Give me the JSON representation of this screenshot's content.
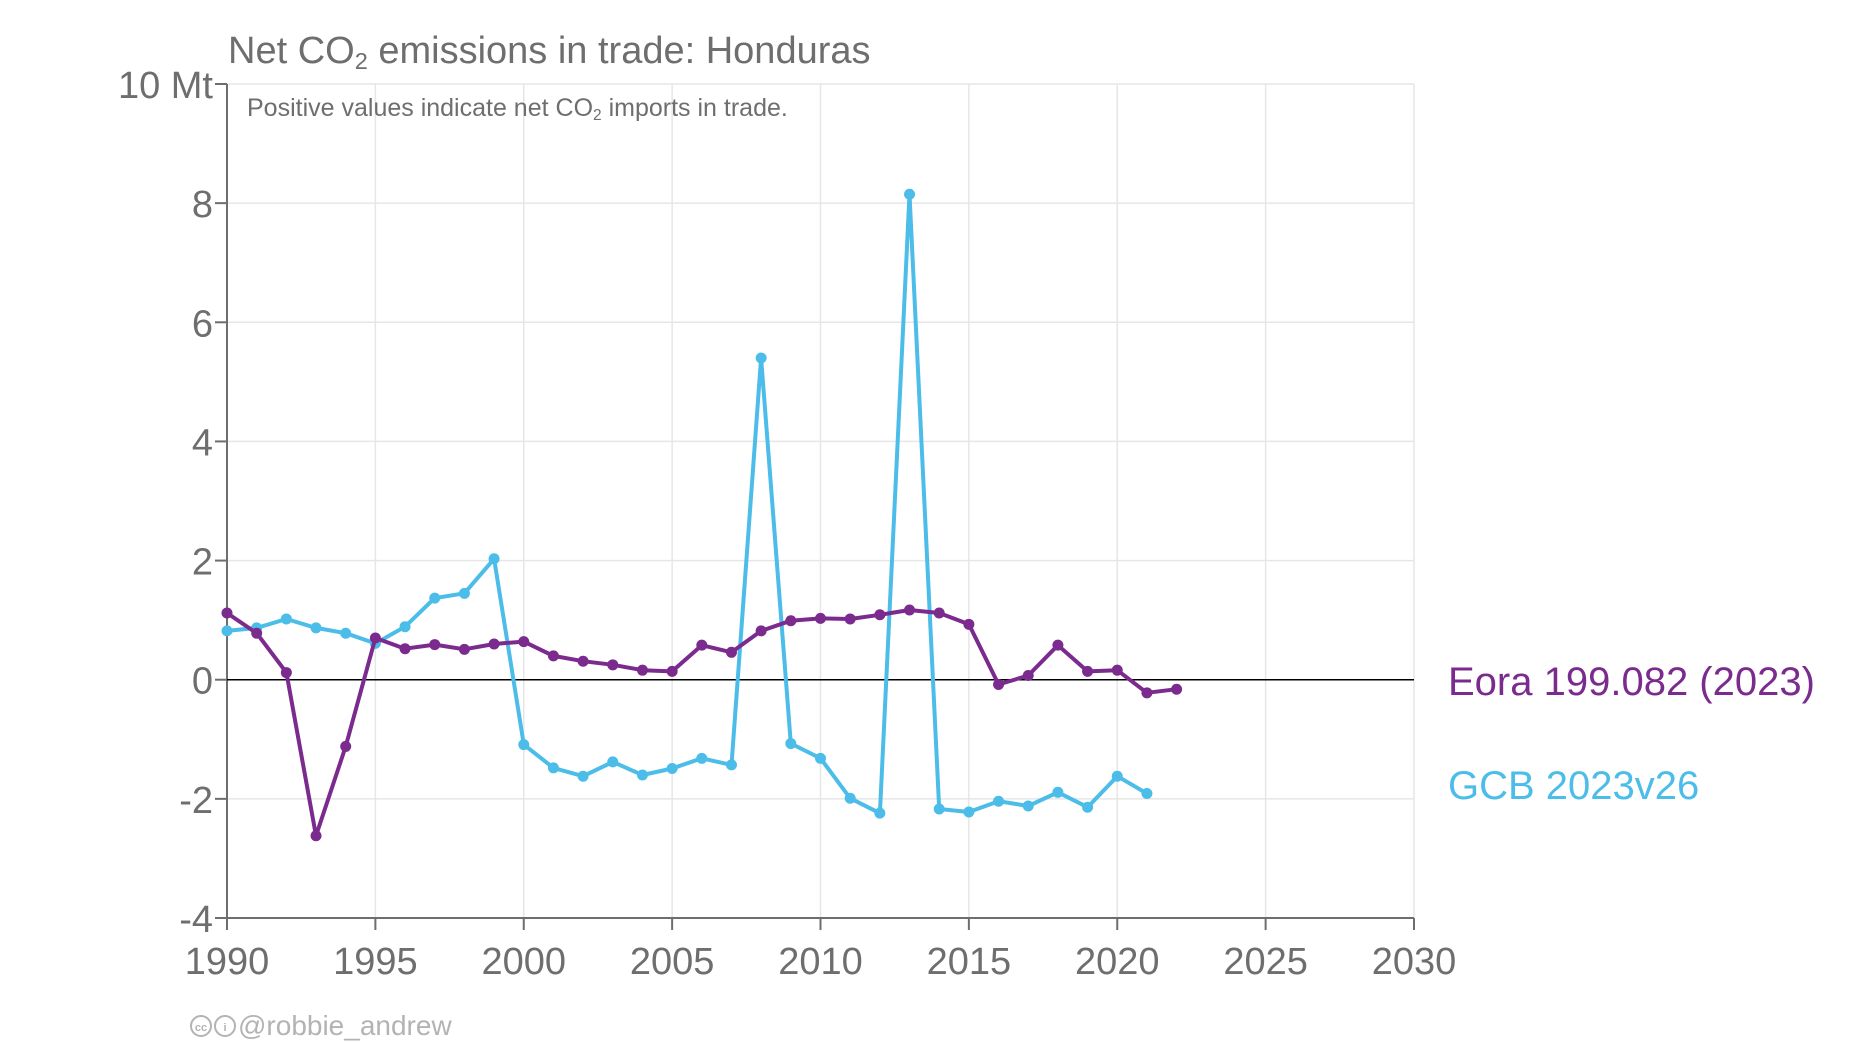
{
  "title": {
    "prefix": "Net CO",
    "sub": "2",
    "suffix": " emissions in trade: Honduras"
  },
  "subtitle": {
    "prefix": "Positive values indicate net CO",
    "sub": "2",
    "suffix": " imports in trade."
  },
  "credit": {
    "icons": [
      "cc-icon",
      "by-icon"
    ],
    "text": "@robbie_andrew"
  },
  "colors": {
    "eora": "#7b2a8e",
    "gcb": "#4bbde8",
    "axis": "#6e6e6e",
    "grid": "#e6e6e6",
    "zero": "#000000"
  },
  "chart_data": {
    "type": "line",
    "xlim": [
      1990,
      2030
    ],
    "ylim": [
      -4,
      10
    ],
    "xticks": [
      1990,
      1995,
      2000,
      2005,
      2010,
      2015,
      2020,
      2025,
      2030
    ],
    "yticks": [
      -4,
      -2,
      0,
      2,
      4,
      6,
      8,
      10
    ],
    "ytick_labels": [
      "-4",
      "-2",
      "0",
      "2",
      "4",
      "6",
      "8",
      "10 Mt"
    ],
    "grid": true,
    "legend_placement": "right",
    "series": [
      {
        "name": "Eora 199.082 (2023)",
        "color": "#7b2a8e",
        "x": [
          1990,
          1991,
          1992,
          1993,
          1994,
          1995,
          1996,
          1997,
          1998,
          1999,
          2000,
          2001,
          2002,
          2003,
          2004,
          2005,
          2006,
          2007,
          2008,
          2009,
          2010,
          2011,
          2012,
          2013,
          2014,
          2015,
          2016,
          2017,
          2018,
          2019,
          2020,
          2021,
          2022
        ],
        "y": [
          1.12,
          0.78,
          0.12,
          -2.62,
          -1.12,
          0.7,
          0.52,
          0.59,
          0.51,
          0.6,
          0.64,
          0.4,
          0.31,
          0.25,
          0.16,
          0.14,
          0.58,
          0.46,
          0.82,
          0.99,
          1.03,
          1.02,
          1.09,
          1.17,
          1.12,
          0.93,
          -0.08,
          0.07,
          0.58,
          0.14,
          0.16,
          -0.22,
          -0.16
        ]
      },
      {
        "name": "GCB 2023v26",
        "color": "#4bbde8",
        "x": [
          1990,
          1991,
          1992,
          1993,
          1994,
          1995,
          1996,
          1997,
          1998,
          1999,
          2000,
          2001,
          2002,
          2003,
          2004,
          2005,
          2006,
          2007,
          2008,
          2009,
          2010,
          2011,
          2012,
          2013,
          2014,
          2015,
          2016,
          2017,
          2018,
          2019,
          2020,
          2021
        ],
        "y": [
          0.82,
          0.87,
          1.02,
          0.87,
          0.78,
          0.61,
          0.89,
          1.37,
          1.45,
          2.03,
          -1.09,
          -1.48,
          -1.62,
          -1.38,
          -1.6,
          -1.49,
          -1.32,
          -1.43,
          5.4,
          -1.07,
          -1.32,
          -1.99,
          -2.24,
          8.15,
          -2.17,
          -2.22,
          -2.04,
          -2.12,
          -1.89,
          -2.14,
          -1.62,
          -1.91
        ]
      }
    ]
  }
}
